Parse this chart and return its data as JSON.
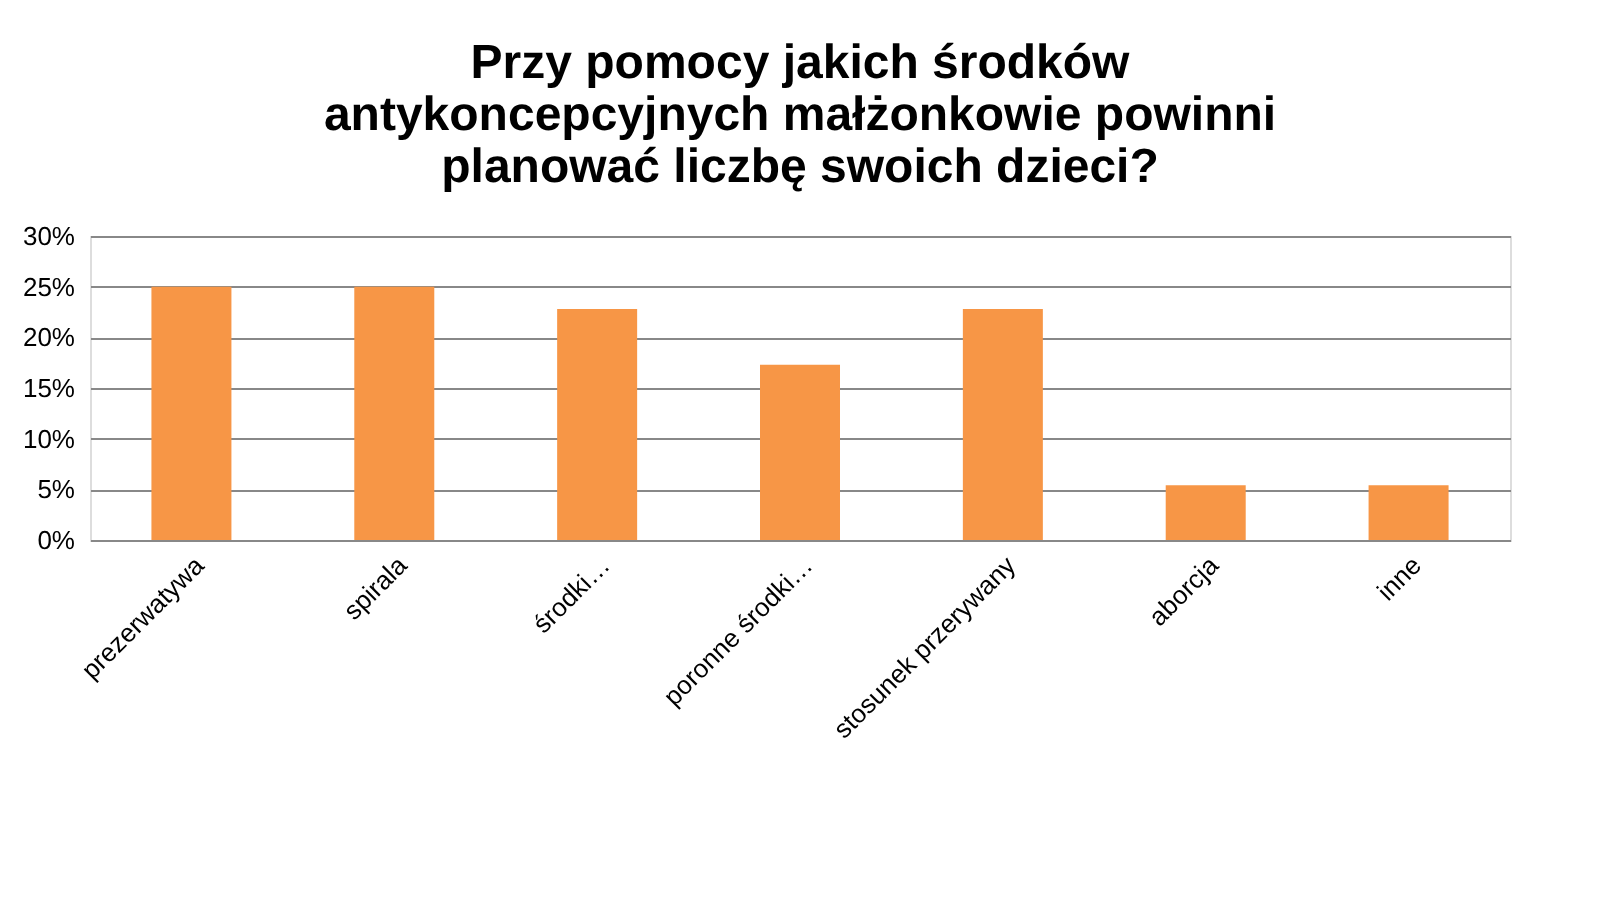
{
  "chart_data": {
    "type": "bar",
    "title": "Przy pomocy jakich środków\nantykoncepcyjnych małżonkowie  powinni\nplanować liczbę swoich dzieci?",
    "categories": [
      "prezerwatywa",
      "spirala",
      "środki…",
      "poronne środki…",
      "stosunek przerywany",
      "aborcja",
      "inne"
    ],
    "values": [
      25,
      25,
      22.8,
      17.3,
      22.8,
      5.4,
      5.4
    ],
    "color": "#f79646",
    "ylim": [
      0,
      30
    ],
    "yticks": [
      {
        "value": 0,
        "label": "0%"
      },
      {
        "value": 5,
        "label": "5%"
      },
      {
        "value": 10,
        "label": "10%"
      },
      {
        "value": 15,
        "label": "15%"
      },
      {
        "value": 20,
        "label": "20%"
      },
      {
        "value": 25,
        "label": "25%"
      },
      {
        "value": 30,
        "label": "30%"
      }
    ],
    "grid": "y"
  }
}
